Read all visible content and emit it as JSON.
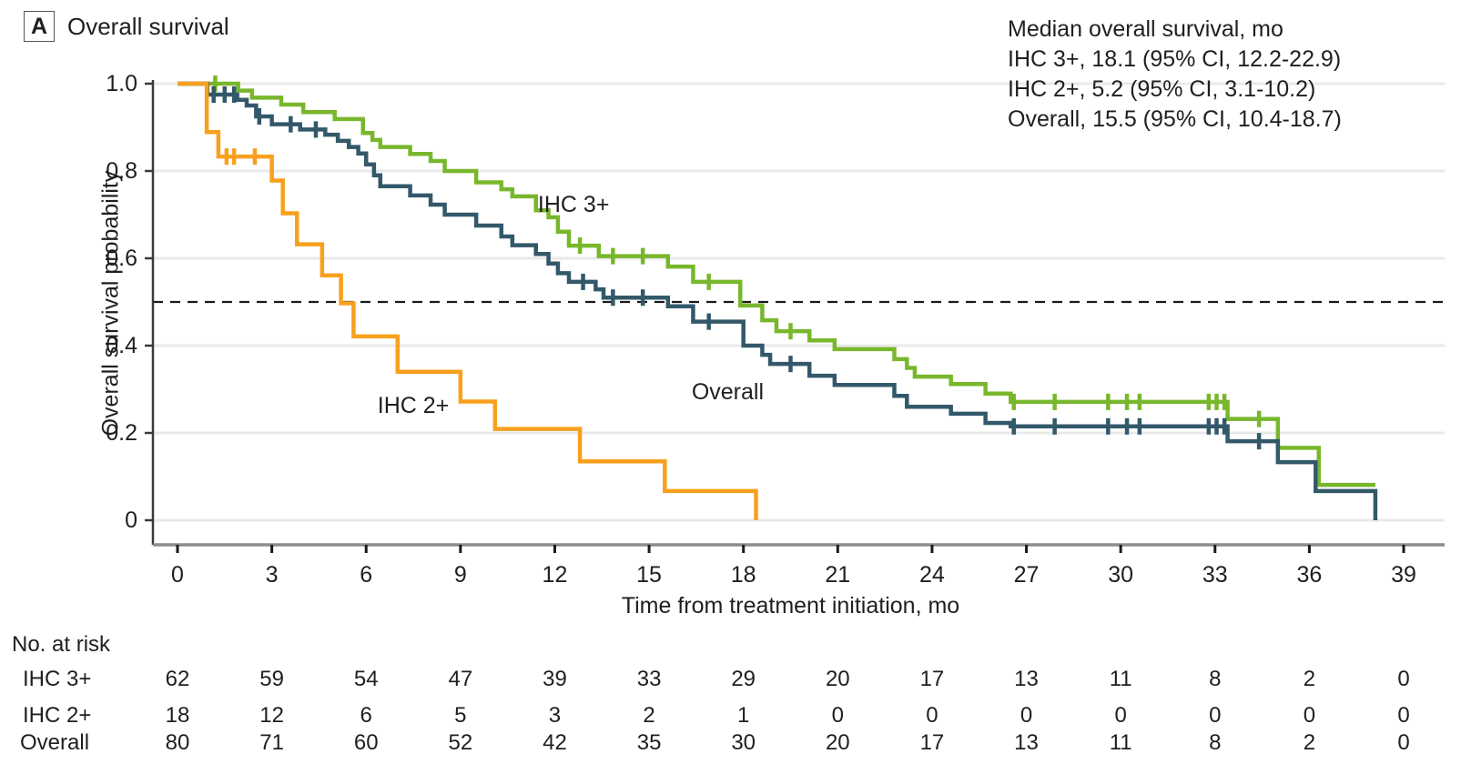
{
  "panel": {
    "letter": "A",
    "title": "Overall survival"
  },
  "legend": {
    "title": "Median overall survival, mo",
    "lines": [
      "IHC 3+, 18.1 (95% CI, 12.2-22.9)",
      "IHC 2+, 5.2 (95% CI, 3.1-10.2)",
      "Overall, 15.5 (95% CI, 10.4-18.7)"
    ]
  },
  "chart_data": {
    "type": "line",
    "subtype": "kaplan-meier-step",
    "title": "Overall survival",
    "xlabel": "Time from treatment initiation, mo",
    "ylabel": "Overall survival probability",
    "xlim": [
      0,
      39
    ],
    "ylim": [
      0,
      1.0
    ],
    "xticks": [
      0,
      3,
      6,
      9,
      12,
      15,
      18,
      21,
      24,
      27,
      30,
      33,
      36,
      39
    ],
    "ytick_values": [
      1.0,
      0.8,
      0.6,
      0.4,
      0.2,
      0
    ],
    "ytick_labels": [
      "1.0",
      "0.8",
      "0.6",
      "0.4",
      "0.2",
      "0"
    ],
    "grid": "horizontal",
    "legend_position": "top-right",
    "reference_line": {
      "y": 0.5,
      "style": "dashed"
    },
    "series": [
      {
        "name": "IHC 3+",
        "color": "#78b72c",
        "label_anchor": {
          "t": 12.6,
          "p": 0.725
        },
        "start": [
          0,
          1.0
        ],
        "steps": [
          [
            1.93,
            0.984
          ],
          [
            2.37,
            0.968
          ],
          [
            3.3,
            0.952
          ],
          [
            4.0,
            0.935
          ],
          [
            5.0,
            0.919
          ],
          [
            5.9,
            0.887
          ],
          [
            6.2,
            0.871
          ],
          [
            6.45,
            0.855
          ],
          [
            7.4,
            0.839
          ],
          [
            8.05,
            0.823
          ],
          [
            8.5,
            0.8
          ],
          [
            9.5,
            0.774
          ],
          [
            10.3,
            0.758
          ],
          [
            10.65,
            0.742
          ],
          [
            11.4,
            0.71
          ],
          [
            11.8,
            0.694
          ],
          [
            12.1,
            0.661
          ],
          [
            12.45,
            0.629
          ],
          [
            13.4,
            0.605
          ],
          [
            15.6,
            0.581
          ],
          [
            16.4,
            0.546
          ],
          [
            17.9,
            0.492
          ],
          [
            18.6,
            0.458
          ],
          [
            19.05,
            0.433
          ],
          [
            20.1,
            0.412
          ],
          [
            20.9,
            0.392
          ],
          [
            22.8,
            0.369
          ],
          [
            23.2,
            0.349
          ],
          [
            23.45,
            0.329
          ],
          [
            24.6,
            0.312
          ],
          [
            25.7,
            0.29
          ],
          [
            26.5,
            0.271
          ],
          [
            33.4,
            0.232
          ],
          [
            35.0,
            0.166
          ],
          [
            36.3,
            0.081
          ]
        ],
        "censor_times": [
          1.2,
          12.8,
          13.85,
          14.8,
          16.9,
          19.5,
          26.6,
          27.9,
          29.6,
          30.2,
          30.6,
          32.8,
          33.05,
          33.3,
          34.4
        ],
        "end_t": 38.1,
        "drop_to_zero": false
      },
      {
        "name": "Overall",
        "color": "#33586a",
        "label_anchor": {
          "t": 17.5,
          "p": 0.296
        },
        "start": [
          0,
          1.0
        ],
        "steps": [
          [
            0.95,
            0.975
          ],
          [
            1.9,
            0.963
          ],
          [
            2.2,
            0.95
          ],
          [
            2.5,
            0.925
          ],
          [
            3.0,
            0.907
          ],
          [
            3.9,
            0.895
          ],
          [
            4.7,
            0.883
          ],
          [
            5.1,
            0.869
          ],
          [
            5.45,
            0.855
          ],
          [
            5.75,
            0.84
          ],
          [
            6.0,
            0.815
          ],
          [
            6.25,
            0.79
          ],
          [
            6.45,
            0.765
          ],
          [
            7.4,
            0.744
          ],
          [
            8.05,
            0.723
          ],
          [
            8.5,
            0.7
          ],
          [
            9.5,
            0.675
          ],
          [
            10.3,
            0.65
          ],
          [
            10.65,
            0.63
          ],
          [
            11.4,
            0.61
          ],
          [
            11.8,
            0.588
          ],
          [
            12.1,
            0.566
          ],
          [
            12.45,
            0.546
          ],
          [
            13.3,
            0.529
          ],
          [
            13.55,
            0.51
          ],
          [
            15.6,
            0.49
          ],
          [
            16.4,
            0.455
          ],
          [
            18.0,
            0.4
          ],
          [
            18.6,
            0.379
          ],
          [
            18.85,
            0.358
          ],
          [
            20.1,
            0.331
          ],
          [
            20.9,
            0.31
          ],
          [
            22.8,
            0.285
          ],
          [
            23.2,
            0.26
          ],
          [
            24.6,
            0.244
          ],
          [
            25.7,
            0.223
          ],
          [
            26.5,
            0.215
          ],
          [
            33.4,
            0.181
          ],
          [
            35.0,
            0.133
          ],
          [
            36.2,
            0.067
          ]
        ],
        "censor_times": [
          1.15,
          1.5,
          1.8,
          2.6,
          3.6,
          4.4,
          12.9,
          13.85,
          14.8,
          16.9,
          19.5,
          26.6,
          27.9,
          29.6,
          30.2,
          30.6,
          32.8,
          33.05,
          33.3,
          34.4
        ],
        "end_t": 38.1,
        "drop_to_zero": true
      },
      {
        "name": "IHC 2+",
        "color": "#f8a01d",
        "label_anchor": {
          "t": 7.5,
          "p": 0.265
        },
        "start": [
          0,
          1.0
        ],
        "steps": [
          [
            0.93,
            0.889
          ],
          [
            1.3,
            0.833
          ],
          [
            3.0,
            0.778
          ],
          [
            3.35,
            0.703
          ],
          [
            3.8,
            0.632
          ],
          [
            4.6,
            0.561
          ],
          [
            5.2,
            0.497
          ],
          [
            5.6,
            0.421
          ],
          [
            7.0,
            0.34
          ],
          [
            9.0,
            0.272
          ],
          [
            10.1,
            0.209
          ],
          [
            12.8,
            0.135
          ],
          [
            15.5,
            0.067
          ]
        ],
        "censor_times": [
          1.56,
          1.8,
          2.46
        ],
        "end_t": 18.4,
        "drop_to_zero": true
      }
    ]
  },
  "risk_table": {
    "title": "No. at risk",
    "times": [
      0,
      3,
      6,
      9,
      12,
      15,
      18,
      21,
      24,
      27,
      30,
      33,
      36,
      39
    ],
    "rows": [
      {
        "label": "IHC 3+",
        "values": [
          62,
          59,
          54,
          47,
          39,
          33,
          29,
          20,
          17,
          13,
          11,
          8,
          2,
          0
        ]
      },
      {
        "label": "IHC 2+",
        "values": [
          18,
          12,
          6,
          5,
          3,
          2,
          1,
          0,
          0,
          0,
          0,
          0,
          0,
          0
        ]
      },
      {
        "label": "Overall",
        "values": [
          80,
          71,
          60,
          52,
          42,
          35,
          30,
          20,
          17,
          13,
          11,
          8,
          2,
          0
        ]
      }
    ]
  },
  "colors": {
    "ihc3": "#78b72c",
    "ihc2": "#f8a01d",
    "overall": "#33586a",
    "gridline": "#e9e9e9",
    "x_axis": "#8c8c8c",
    "y_axis": "#3a3a3a",
    "text": "#1f1f1f"
  }
}
